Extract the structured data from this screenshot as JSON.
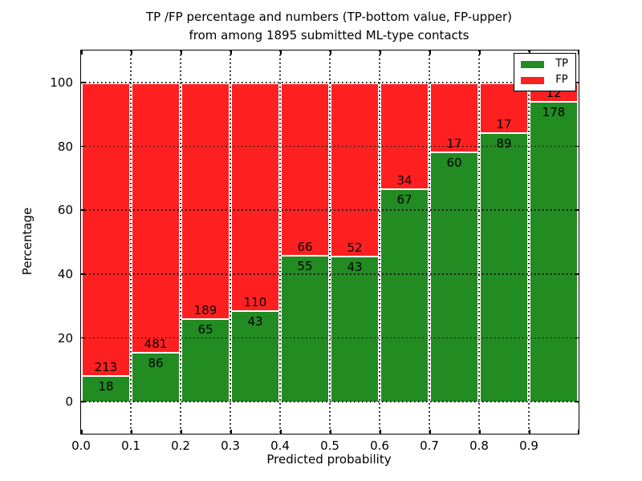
{
  "title": {
    "line1": "TP /FP percentage and numbers (TP-bottom value, FP-upper)",
    "line2": "from among 1895 submitted ML-type contacts"
  },
  "chart_data": {
    "type": "bar",
    "stacked": true,
    "normalized": "each bar stacks to 100%",
    "title": "TP /FP percentage and numbers (TP-bottom value, FP-upper) from among 1895 submitted ML-type contacts",
    "xlabel": "Predicted probability",
    "ylabel": "Percentage",
    "total_contacts": 1895,
    "bin_starts": [
      0.0,
      0.1,
      0.2,
      0.3,
      0.4,
      0.5,
      0.6,
      0.7,
      0.8,
      0.9
    ],
    "bin_width": 0.1,
    "series": [
      {
        "name": "TP",
        "color": "#228b22",
        "counts": [
          18,
          86,
          65,
          43,
          55,
          43,
          67,
          60,
          89,
          178
        ],
        "percent": [
          7.8,
          15.2,
          25.6,
          28.1,
          45.5,
          45.3,
          66.3,
          77.9,
          84.0,
          93.7
        ]
      },
      {
        "name": "FP",
        "color": "#fe2020",
        "counts": [
          213,
          481,
          189,
          110,
          66,
          52,
          34,
          17,
          17,
          12
        ],
        "percent": [
          92.2,
          84.8,
          74.4,
          71.9,
          54.5,
          54.7,
          33.7,
          22.1,
          16.0,
          6.3
        ]
      }
    ],
    "x_tick_labels": [
      "0.0",
      "0.1",
      "0.2",
      "0.3",
      "0.4",
      "0.5",
      "0.6",
      "0.7",
      "0.8",
      "0.9"
    ],
    "y_tick_values": [
      0,
      20,
      40,
      60,
      80,
      100
    ],
    "xlim": [
      0.0,
      1.0
    ],
    "ylim": [
      -10,
      110
    ],
    "grid": "dotted black, vertical every 0.1 and horizontal every 20",
    "legend": {
      "position": "upper right",
      "entries": [
        {
          "label": "TP",
          "color": "#228b22"
        },
        {
          "label": "FP",
          "color": "#fe2020"
        }
      ]
    }
  }
}
